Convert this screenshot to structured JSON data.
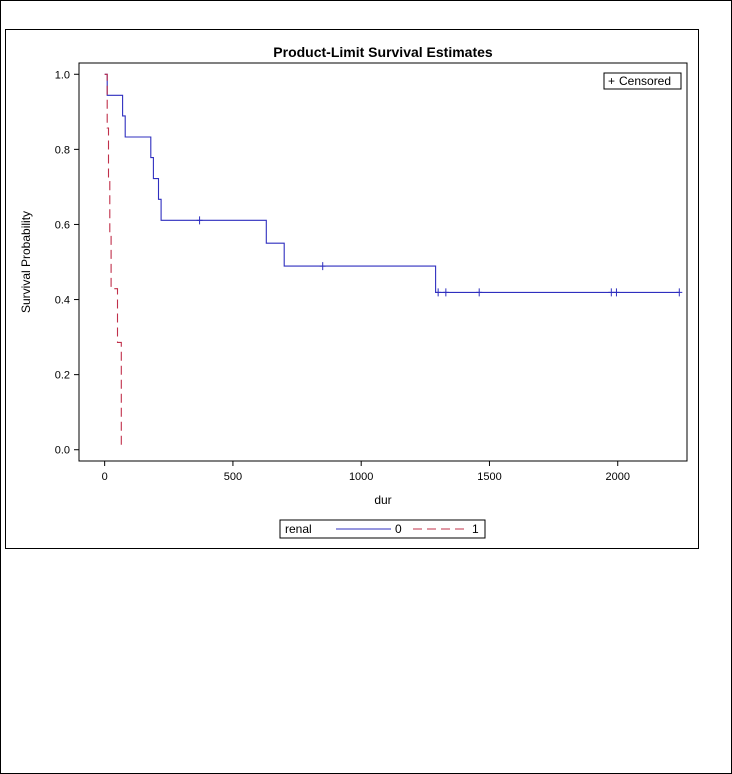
{
  "chart_data": {
    "type": "line",
    "title": "Product-Limit Survival Estimates",
    "xlabel": "dur",
    "ylabel": "Survival Probability",
    "xlim": [
      -100,
      2270
    ],
    "ylim": [
      -0.03,
      1.03
    ],
    "x_ticks": [
      0,
      500,
      1000,
      1500,
      2000
    ],
    "y_ticks": [
      0.0,
      0.2,
      0.4,
      0.6,
      0.8,
      1.0
    ],
    "x_tick_labels": [
      "0",
      "500",
      "1000",
      "1500",
      "2000"
    ],
    "y_tick_labels": [
      "0.0",
      "0.2",
      "0.4",
      "0.6",
      "0.8",
      "1.0"
    ],
    "grid": false,
    "censored_inset": {
      "marker": "+",
      "label": "Censored",
      "placement": "top-right"
    },
    "legend": {
      "title": "renal",
      "placement": "bottom"
    },
    "series": [
      {
        "name": "0",
        "color": "#2f2fbf",
        "dash": "solid",
        "steps": [
          [
            0,
            1.0
          ],
          [
            10,
            0.944
          ],
          [
            70,
            0.889
          ],
          [
            80,
            0.833
          ],
          [
            180,
            0.778
          ],
          [
            190,
            0.722
          ],
          [
            210,
            0.667
          ],
          [
            220,
            0.611
          ],
          [
            630,
            0.55
          ],
          [
            700,
            0.489
          ],
          [
            1290,
            0.419
          ],
          [
            2240,
            0.419
          ]
        ],
        "censored": [
          [
            370,
            0.611
          ],
          [
            850,
            0.489
          ],
          [
            1300,
            0.419
          ],
          [
            1330,
            0.419
          ],
          [
            1460,
            0.419
          ],
          [
            1975,
            0.419
          ],
          [
            1995,
            0.419
          ],
          [
            2240,
            0.419
          ]
        ]
      },
      {
        "name": "1",
        "color": "#c0304a",
        "dash": "dashed",
        "steps": [
          [
            0,
            1.0
          ],
          [
            10,
            0.857
          ],
          [
            15,
            0.714
          ],
          [
            20,
            0.571
          ],
          [
            25,
            0.429
          ],
          [
            50,
            0.286
          ],
          [
            65,
            0.0
          ]
        ],
        "censored": []
      }
    ]
  }
}
